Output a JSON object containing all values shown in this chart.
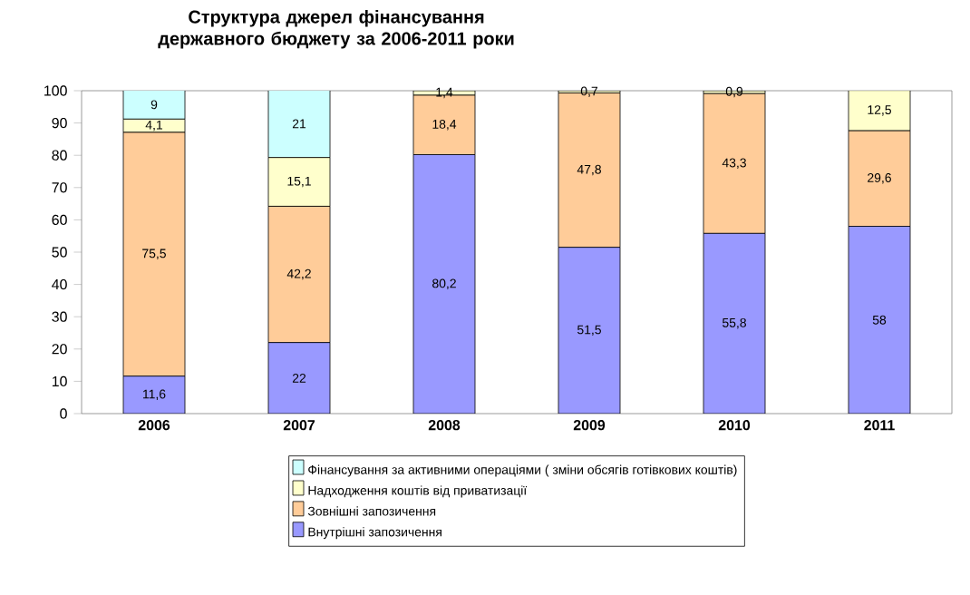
{
  "chart_data": {
    "type": "bar",
    "stacked": true,
    "title": "Структура джерел фінансування державного бюджету за 2006-2011 роки",
    "categories": [
      "2006",
      "2007",
      "2008",
      "2009",
      "2010",
      "2011"
    ],
    "series": [
      {
        "name": "Внутрішні запозичення",
        "color": "#9999ff",
        "values": [
          11.6,
          22,
          80.2,
          51.5,
          55.8,
          58
        ],
        "value_labels": [
          "11,6",
          "22",
          "80,2",
          "51,5",
          "55,8",
          "58"
        ]
      },
      {
        "name": "Зовнішні запозичення",
        "color": "#ffcc99",
        "values": [
          75.5,
          42.2,
          18.4,
          47.8,
          43.3,
          29.6
        ],
        "value_labels": [
          "75,5",
          "42,2",
          "18,4",
          "47,8",
          "43,3",
          "29,6"
        ]
      },
      {
        "name": "Надходження коштів від приватизації",
        "color": "#ffffcc",
        "values": [
          4.1,
          15.1,
          1.4,
          0.7,
          0.9,
          12.5
        ],
        "value_labels": [
          "4,1",
          "15,1",
          "1,4",
          "0,7",
          "0,9",
          "12,5"
        ]
      },
      {
        "name": "Фінансування за активними операціями ( зміни обсягів готівкових коштів)",
        "color": "#ccffff",
        "values": [
          9,
          21,
          null,
          null,
          null,
          null
        ],
        "value_labels": [
          "9",
          "21",
          null,
          null,
          null,
          null
        ]
      }
    ],
    "ylim": [
      0,
      100
    ],
    "yticks": [
      0,
      10,
      20,
      30,
      40,
      50,
      60,
      70,
      80,
      90,
      100
    ],
    "legend": "bottom"
  }
}
